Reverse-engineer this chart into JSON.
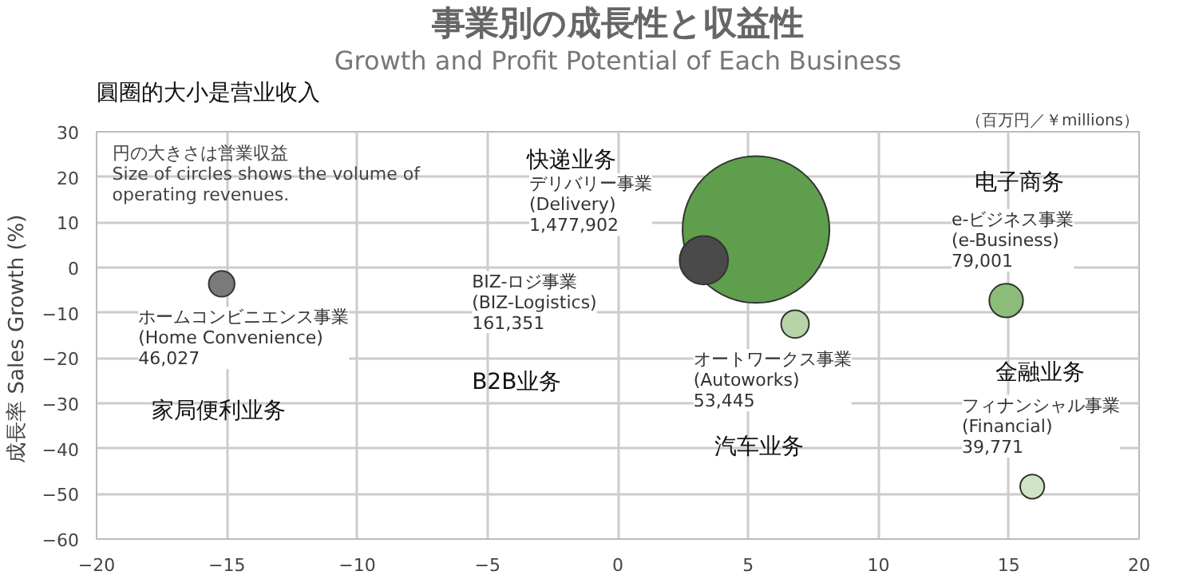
{
  "chart_data": {
    "type": "bubble",
    "title": "事業別の成長性と収益性",
    "subtitle": "Growth and Profit Potential of Each Business",
    "ylabel": "成長率  Sales Growth (%)",
    "x": [
      -15.2,
      5.3,
      3.3,
      6.8,
      14.9,
      15.9
    ],
    "values": [
      -3.6,
      8.4,
      1.6,
      -12.5,
      -7.3,
      -48.4
    ],
    "sizes": [
      0.031,
      1,
      0.109,
      0.036,
      0.053,
      0.027
    ],
    "colors": [
      "#7a7a7a",
      "#5e9e4c",
      "#4a4a4a",
      "#b7d4a8",
      "#8cbc7a",
      "#cfe4c4"
    ],
    "xlim": [
      -20,
      20
    ],
    "ylim": [
      -60,
      30
    ],
    "xticks": [
      -20,
      -15,
      -10,
      -5,
      0,
      5,
      10,
      15,
      20
    ],
    "yticks": [
      -60,
      -50,
      -40,
      -30,
      -20,
      -10,
      0,
      10,
      20,
      30
    ],
    "grid": true,
    "annotations": [
      "圓圈的大小是营业收入",
      "（百万円／￥millions）",
      "円の大きさは営業収益\nSize of circles shows the volume of\noperating revenues.",
      "ホームコンビニエンス事業\n(Home Convenience)\n46,027",
      "家局便利业务",
      "快递业务",
      "デリバリー事業\n(Delivery)\n1,477,902",
      "BIZ-ロジ事業\n(BIZ-Logistics)\n161,351",
      "B2B业务",
      "オートワークス事業\n(Autoworks)\n53,445",
      "汽车业务",
      "电子商务",
      "e-ビジネス事業\n(e-Business)\n79,001",
      "金融业务",
      "フィナンシャル事業\n(Financial)\n39,771"
    ]
  }
}
